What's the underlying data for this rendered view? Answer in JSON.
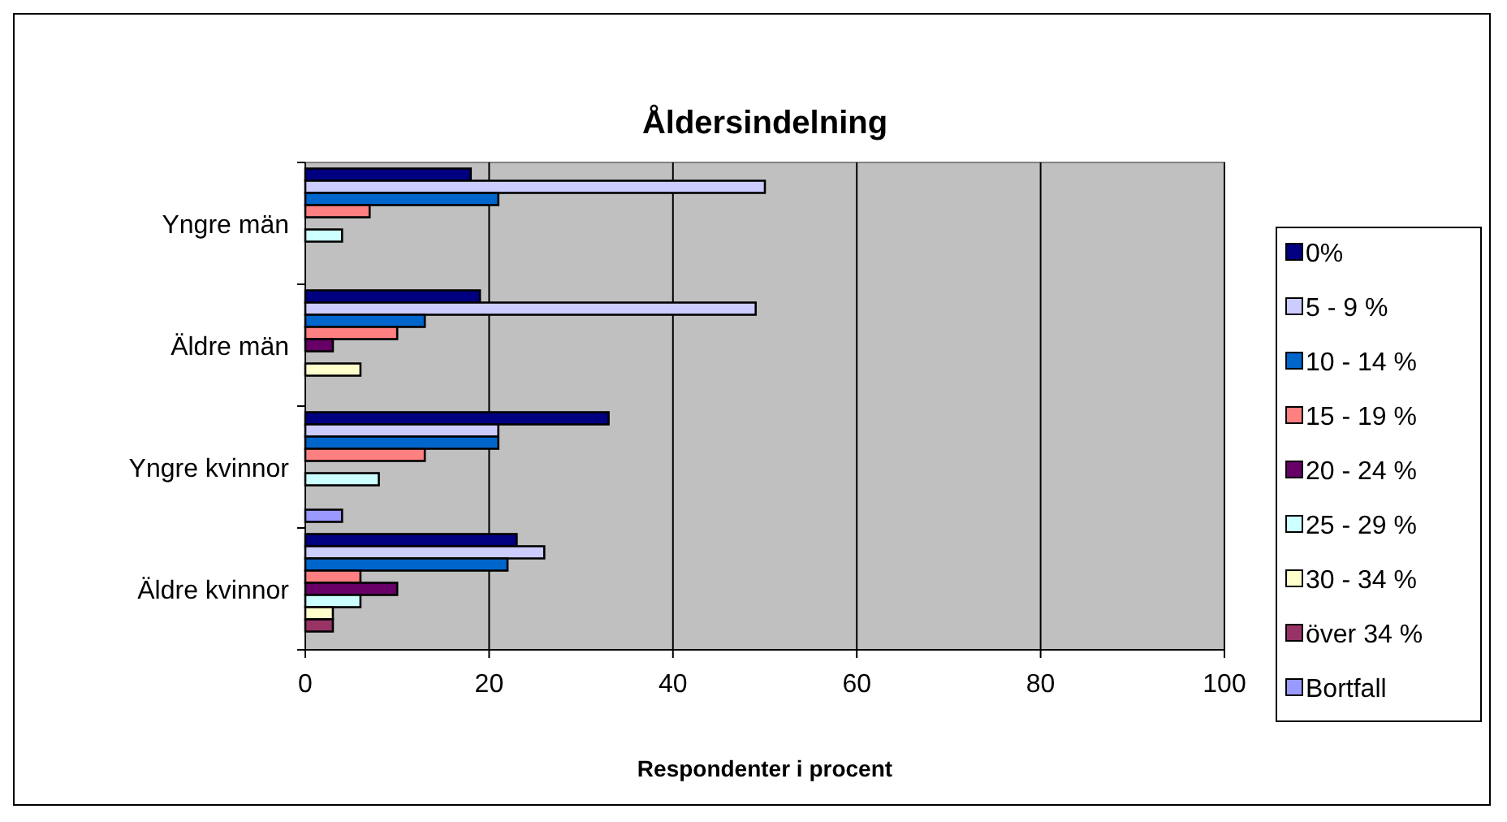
{
  "chart_data": {
    "type": "bar",
    "orientation": "horizontal",
    "title": "Åldersindelning",
    "xlabel": "Respondenter i procent",
    "categories": [
      "Yngre män",
      "Äldre män",
      "Yngre kvinnor",
      "Äldre kvinnor"
    ],
    "series": [
      {
        "name": "0%",
        "color": "#000080",
        "values": [
          18,
          19,
          33,
          23
        ]
      },
      {
        "name": "5 - 9 %",
        "color": "#ccccff",
        "values": [
          50,
          49,
          21,
          26
        ]
      },
      {
        "name": "10 - 14 %",
        "color": "#0066cc",
        "values": [
          21,
          13,
          21,
          22
        ]
      },
      {
        "name": "15 - 19 %",
        "color": "#ff8080",
        "values": [
          7,
          10,
          13,
          6
        ]
      },
      {
        "name": "20 - 24 %",
        "color": "#660066",
        "values": [
          0,
          3,
          0,
          10
        ]
      },
      {
        "name": "25 - 29 %",
        "color": "#ccffff",
        "values": [
          4,
          0,
          8,
          6
        ]
      },
      {
        "name": "30 - 34 %",
        "color": "#ffffcc",
        "values": [
          0,
          6,
          0,
          3
        ]
      },
      {
        "name": "över 34 %",
        "color": "#993366",
        "values": [
          0,
          0,
          0,
          3
        ]
      },
      {
        "name": "Bortfall",
        "color": "#9999ff",
        "values": [
          0,
          0,
          4,
          0
        ]
      }
    ],
    "xlim": [
      0,
      100
    ],
    "xticks": [
      0,
      20,
      40,
      60,
      80,
      100
    ],
    "grid": "x",
    "legend": "right"
  }
}
